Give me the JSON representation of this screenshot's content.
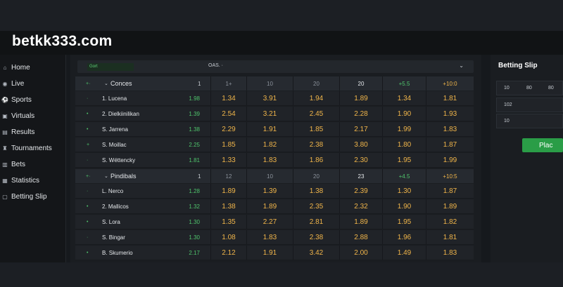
{
  "site": {
    "logo": "betkk333.com"
  },
  "sidebar": {
    "items": [
      {
        "label": "Home",
        "icon": "home-icon",
        "glyph": "⌂"
      },
      {
        "label": "Live",
        "icon": "live-icon",
        "glyph": "◉"
      },
      {
        "label": "Sports",
        "icon": "sports-icon",
        "glyph": "⚽"
      },
      {
        "label": "Virtuals",
        "icon": "virtuals-icon",
        "glyph": "▣"
      },
      {
        "label": "Results",
        "icon": "results-icon",
        "glyph": "▤"
      },
      {
        "label": "Tournaments",
        "icon": "trophy-icon",
        "glyph": "♜"
      },
      {
        "label": "Bets",
        "icon": "bets-icon",
        "glyph": "▥"
      },
      {
        "label": "Statistics",
        "icon": "statistics-icon",
        "glyph": "▦"
      },
      {
        "label": "Betting Slip",
        "icon": "slip-icon",
        "glyph": "▢"
      }
    ]
  },
  "filters": {
    "left": "Gort",
    "middle": "OAS. ·"
  },
  "sections": [
    {
      "title": "Conces",
      "count": "1",
      "headers": [
        "1+",
        "10",
        "20",
        "20",
        "+5.5",
        "+10:0"
      ],
      "rows": [
        {
          "marker": "·",
          "name": "1. Lucena",
          "value": "1.98",
          "odds": [
            "1.34",
            "3.91",
            "1.94",
            "1.89",
            "1.34",
            "1.81"
          ]
        },
        {
          "marker": "•",
          "name": "2. Dielkiinilikan",
          "value": "1.39",
          "odds": [
            "2.54",
            "3.21",
            "2.45",
            "2.28",
            "1.90",
            "1.93"
          ]
        },
        {
          "marker": "•",
          "name": "S. Jarrena",
          "value": "1.38",
          "odds": [
            "2.29",
            "1.91",
            "1.85",
            "2.17",
            "1.99",
            "1.83"
          ]
        },
        {
          "marker": "+",
          "name": "S. Moillac",
          "value": "2.25",
          "odds": [
            "1.85",
            "1.82",
            "2.38",
            "3.80",
            "1.80",
            "1.87"
          ]
        },
        {
          "marker": "·",
          "name": "S. Wéttencky",
          "value": "1.81",
          "odds": [
            "1.33",
            "1.83",
            "1.86",
            "2.30",
            "1.95",
            "1.99"
          ]
        }
      ]
    },
    {
      "title": "Pindibals",
      "count": "1",
      "headers": [
        "12",
        "10",
        "20",
        "23",
        "+4.5",
        "+10:5"
      ],
      "rows": [
        {
          "marker": "·",
          "name": "L. Nerco",
          "value": "1.28",
          "odds": [
            "1.89",
            "1.39",
            "1.38",
            "2.39",
            "1.30",
            "1.87"
          ]
        },
        {
          "marker": "•",
          "name": "2. Mallicos",
          "value": "1.32",
          "odds": [
            "1.38",
            "1.89",
            "2.35",
            "2.32",
            "1.90",
            "1.89"
          ]
        },
        {
          "marker": "•",
          "name": "S. Lora",
          "value": "1.30",
          "odds": [
            "1.35",
            "2.27",
            "2.81",
            "1.89",
            "1.95",
            "1.82"
          ]
        },
        {
          "marker": "·",
          "name": "S. Bingar",
          "value": "1.30",
          "odds": [
            "1.08",
            "1.83",
            "2.38",
            "2.88",
            "1.96",
            "1.81"
          ]
        },
        {
          "marker": "•",
          "name": "B. Skumerio",
          "value": "2.17",
          "odds": [
            "2.12",
            "1.91",
            "3.42",
            "2.00",
            "1.49",
            "1.83"
          ]
        }
      ]
    }
  ],
  "slip": {
    "title": "Betting Slip",
    "quick_stakes": [
      "10",
      "80",
      "80"
    ],
    "stake_value": "102",
    "second_value": "10",
    "place_label": "Plac"
  }
}
